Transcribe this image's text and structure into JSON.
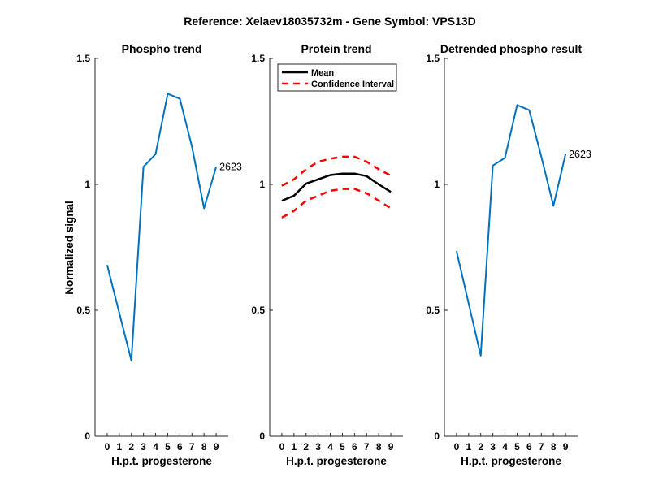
{
  "figure": {
    "suptitle": "Reference:  Xelaev18035732m - Gene Symbol:  VPS13D",
    "ylabel": "Normalized signal",
    "xlabel": "H.p.t. progesterone"
  },
  "colors": {
    "trend": "#0072BD",
    "mean": "#000000",
    "ci": "#FF0000"
  },
  "legend": {
    "mean": "Mean",
    "ci": "Confidence Interval"
  },
  "chart_data": [
    {
      "type": "line",
      "title": "Phospho trend",
      "xlabel": "H.p.t. progesterone",
      "ylabel": "Normalized signal",
      "xlim": [
        -1,
        10
      ],
      "ylim": [
        0,
        1.5
      ],
      "xticks": [
        "0",
        "1",
        "2",
        "3",
        "4",
        "5",
        "6",
        "7",
        "8",
        "9"
      ],
      "yticks": [
        "0",
        "0.5",
        "1",
        "1.5"
      ],
      "series": [
        {
          "x": [
            0,
            2,
            3,
            4,
            5,
            6,
            7,
            8,
            9
          ],
          "y": [
            0.68,
            0.3,
            1.07,
            1.12,
            1.36,
            1.34,
            1.15,
            0.905,
            1.07
          ],
          "end_label": "2623"
        }
      ]
    },
    {
      "type": "line",
      "title": "Protein trend",
      "xlabel": "H.p.t. progesterone",
      "xlim": [
        -1,
        10
      ],
      "ylim": [
        0,
        1.5
      ],
      "xticks": [
        "0",
        "1",
        "2",
        "3",
        "4",
        "5",
        "6",
        "7",
        "8",
        "9"
      ],
      "yticks": [
        "0",
        "0.5",
        "1",
        "1.5"
      ],
      "legend_position": "top-left",
      "series": [
        {
          "name": "Mean",
          "x": [
            0,
            1,
            2,
            3,
            4,
            5,
            6,
            7,
            8,
            9
          ],
          "y": [
            0.935,
            0.955,
            1.003,
            1.02,
            1.037,
            1.043,
            1.043,
            1.033,
            1.0,
            0.97
          ]
        },
        {
          "name": "Confidence Interval",
          "x": [
            0,
            1,
            2,
            3,
            4,
            5,
            6,
            7,
            8,
            9
          ],
          "y": [
            0.995,
            1.02,
            1.06,
            1.09,
            1.102,
            1.11,
            1.11,
            1.09,
            1.06,
            1.035
          ]
        },
        {
          "name": "Confidence Interval",
          "x": [
            0,
            1,
            2,
            3,
            4,
            5,
            6,
            7,
            8,
            9
          ],
          "y": [
            0.868,
            0.895,
            0.935,
            0.955,
            0.975,
            0.982,
            0.982,
            0.965,
            0.935,
            0.905
          ]
        }
      ]
    },
    {
      "type": "line",
      "title": "Detrended phospho result",
      "xlabel": "H.p.t. progesterone",
      "xlim": [
        -1,
        10
      ],
      "ylim": [
        0,
        1.5
      ],
      "xticks": [
        "0",
        "1",
        "2",
        "3",
        "4",
        "5",
        "6",
        "7",
        "8",
        "9"
      ],
      "yticks": [
        "0",
        "0.5",
        "1",
        "1.5"
      ],
      "series": [
        {
          "x": [
            0,
            2,
            3,
            4,
            5,
            6,
            7,
            8,
            9
          ],
          "y": [
            0.735,
            0.32,
            1.075,
            1.105,
            1.315,
            1.295,
            1.11,
            0.915,
            1.12
          ],
          "end_label": "2623"
        }
      ]
    }
  ]
}
